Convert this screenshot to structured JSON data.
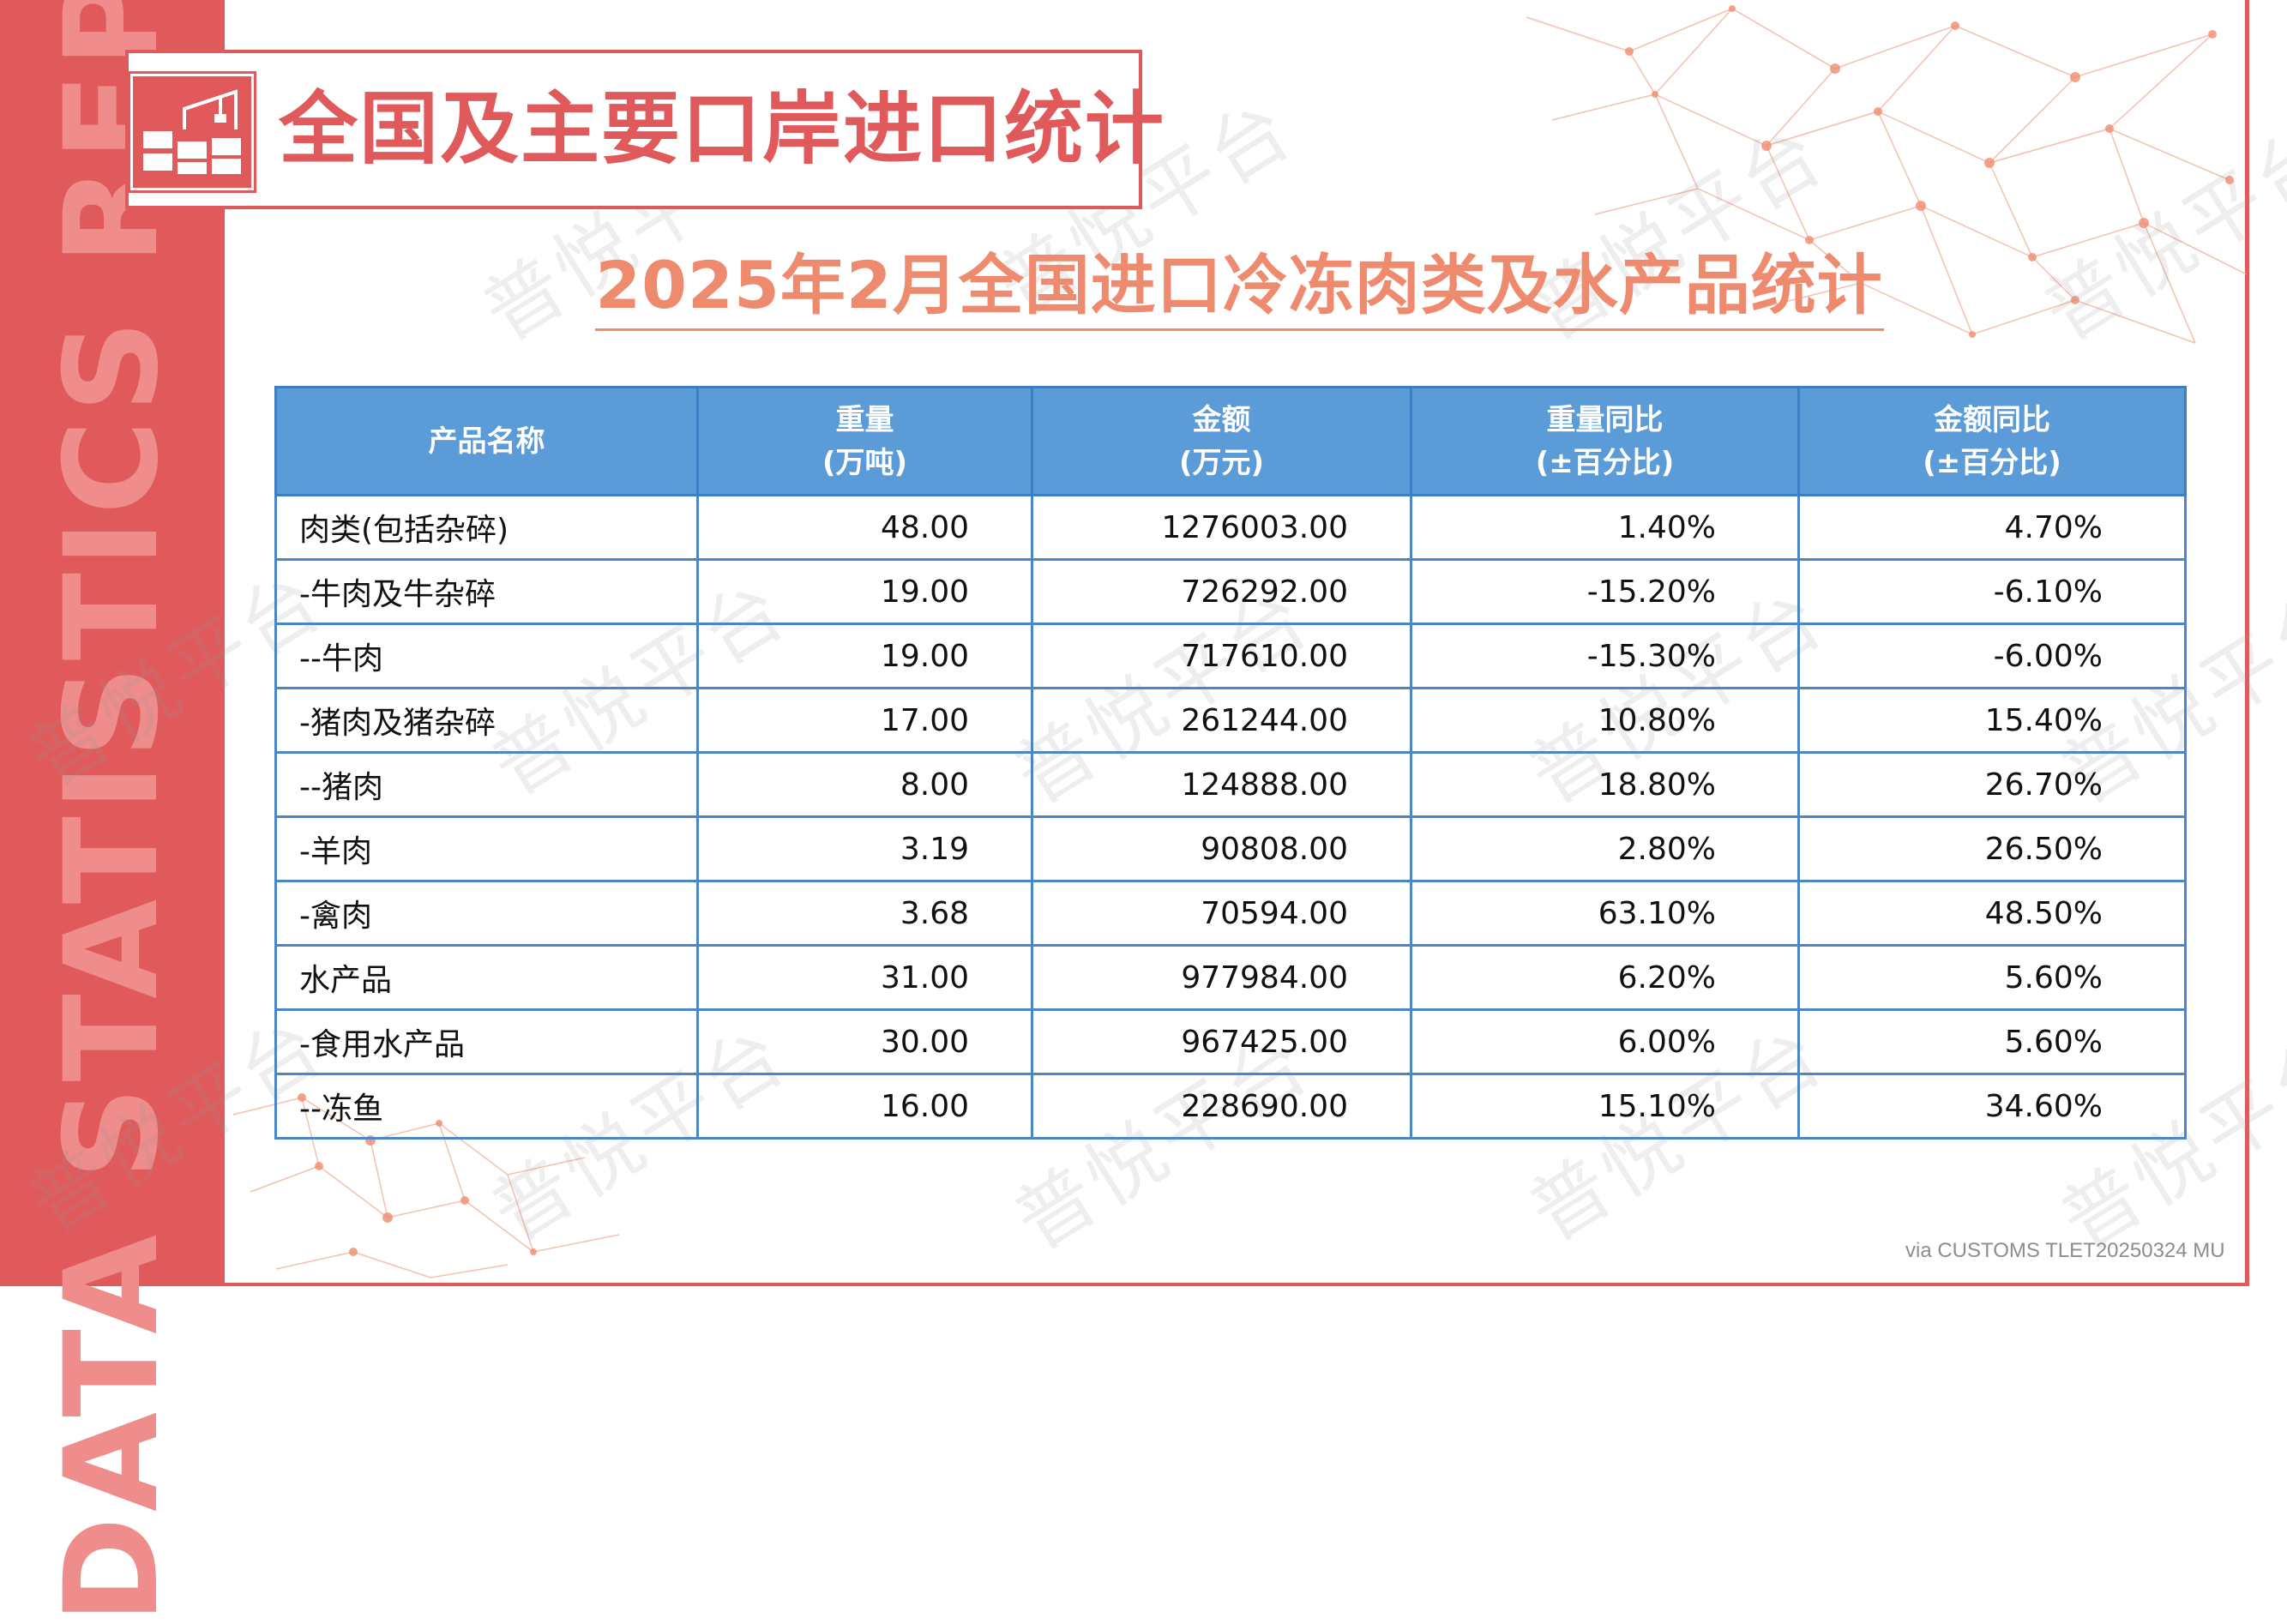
{
  "side_label": "DATA STATISTICS REPORT",
  "header": {
    "title": "全国及主要口岸进口统计",
    "icon": "containers-crane-icon"
  },
  "subtitle": "2025年2月全国进口冷冻肉类及水产品统计",
  "watermark": "普悦平台",
  "table": {
    "headers": [
      {
        "line1": "产品名称",
        "line2": ""
      },
      {
        "line1": "重量",
        "line2": "(万吨)"
      },
      {
        "line1": "金额",
        "line2": "(万元)"
      },
      {
        "line1": "重量同比",
        "line2": "(±百分比)"
      },
      {
        "line1": "金额同比",
        "line2": "(±百分比)"
      }
    ],
    "rows": [
      [
        "肉类(包括杂碎)",
        "48.00",
        "1276003.00",
        "1.40%",
        "4.70%"
      ],
      [
        "-牛肉及牛杂碎",
        "19.00",
        "726292.00",
        "-15.20%",
        "-6.10%"
      ],
      [
        "--牛肉",
        "19.00",
        "717610.00",
        "-15.30%",
        "-6.00%"
      ],
      [
        "-猪肉及猪杂碎",
        "17.00",
        "261244.00",
        "10.80%",
        "15.40%"
      ],
      [
        "--猪肉",
        "8.00",
        "124888.00",
        "18.80%",
        "26.70%"
      ],
      [
        "-羊肉",
        "3.19",
        "90808.00",
        "2.80%",
        "26.50%"
      ],
      [
        "-禽肉",
        "3.68",
        "70594.00",
        "63.10%",
        "48.50%"
      ],
      [
        "水产品",
        "31.00",
        "977984.00",
        "6.20%",
        "5.60%"
      ],
      [
        "-食用水产品",
        "30.00",
        "967425.00",
        "6.00%",
        "5.60%"
      ],
      [
        "--冻鱼",
        "16.00",
        "228690.00",
        "15.10%",
        "34.60%"
      ]
    ]
  },
  "source_note": "via CUSTOMS TLET20250324 MU",
  "colors": {
    "accent_red": "#e05a5c",
    "header_blue": "#5b9bd8",
    "subtitle_orange": "#ee8b6f"
  }
}
